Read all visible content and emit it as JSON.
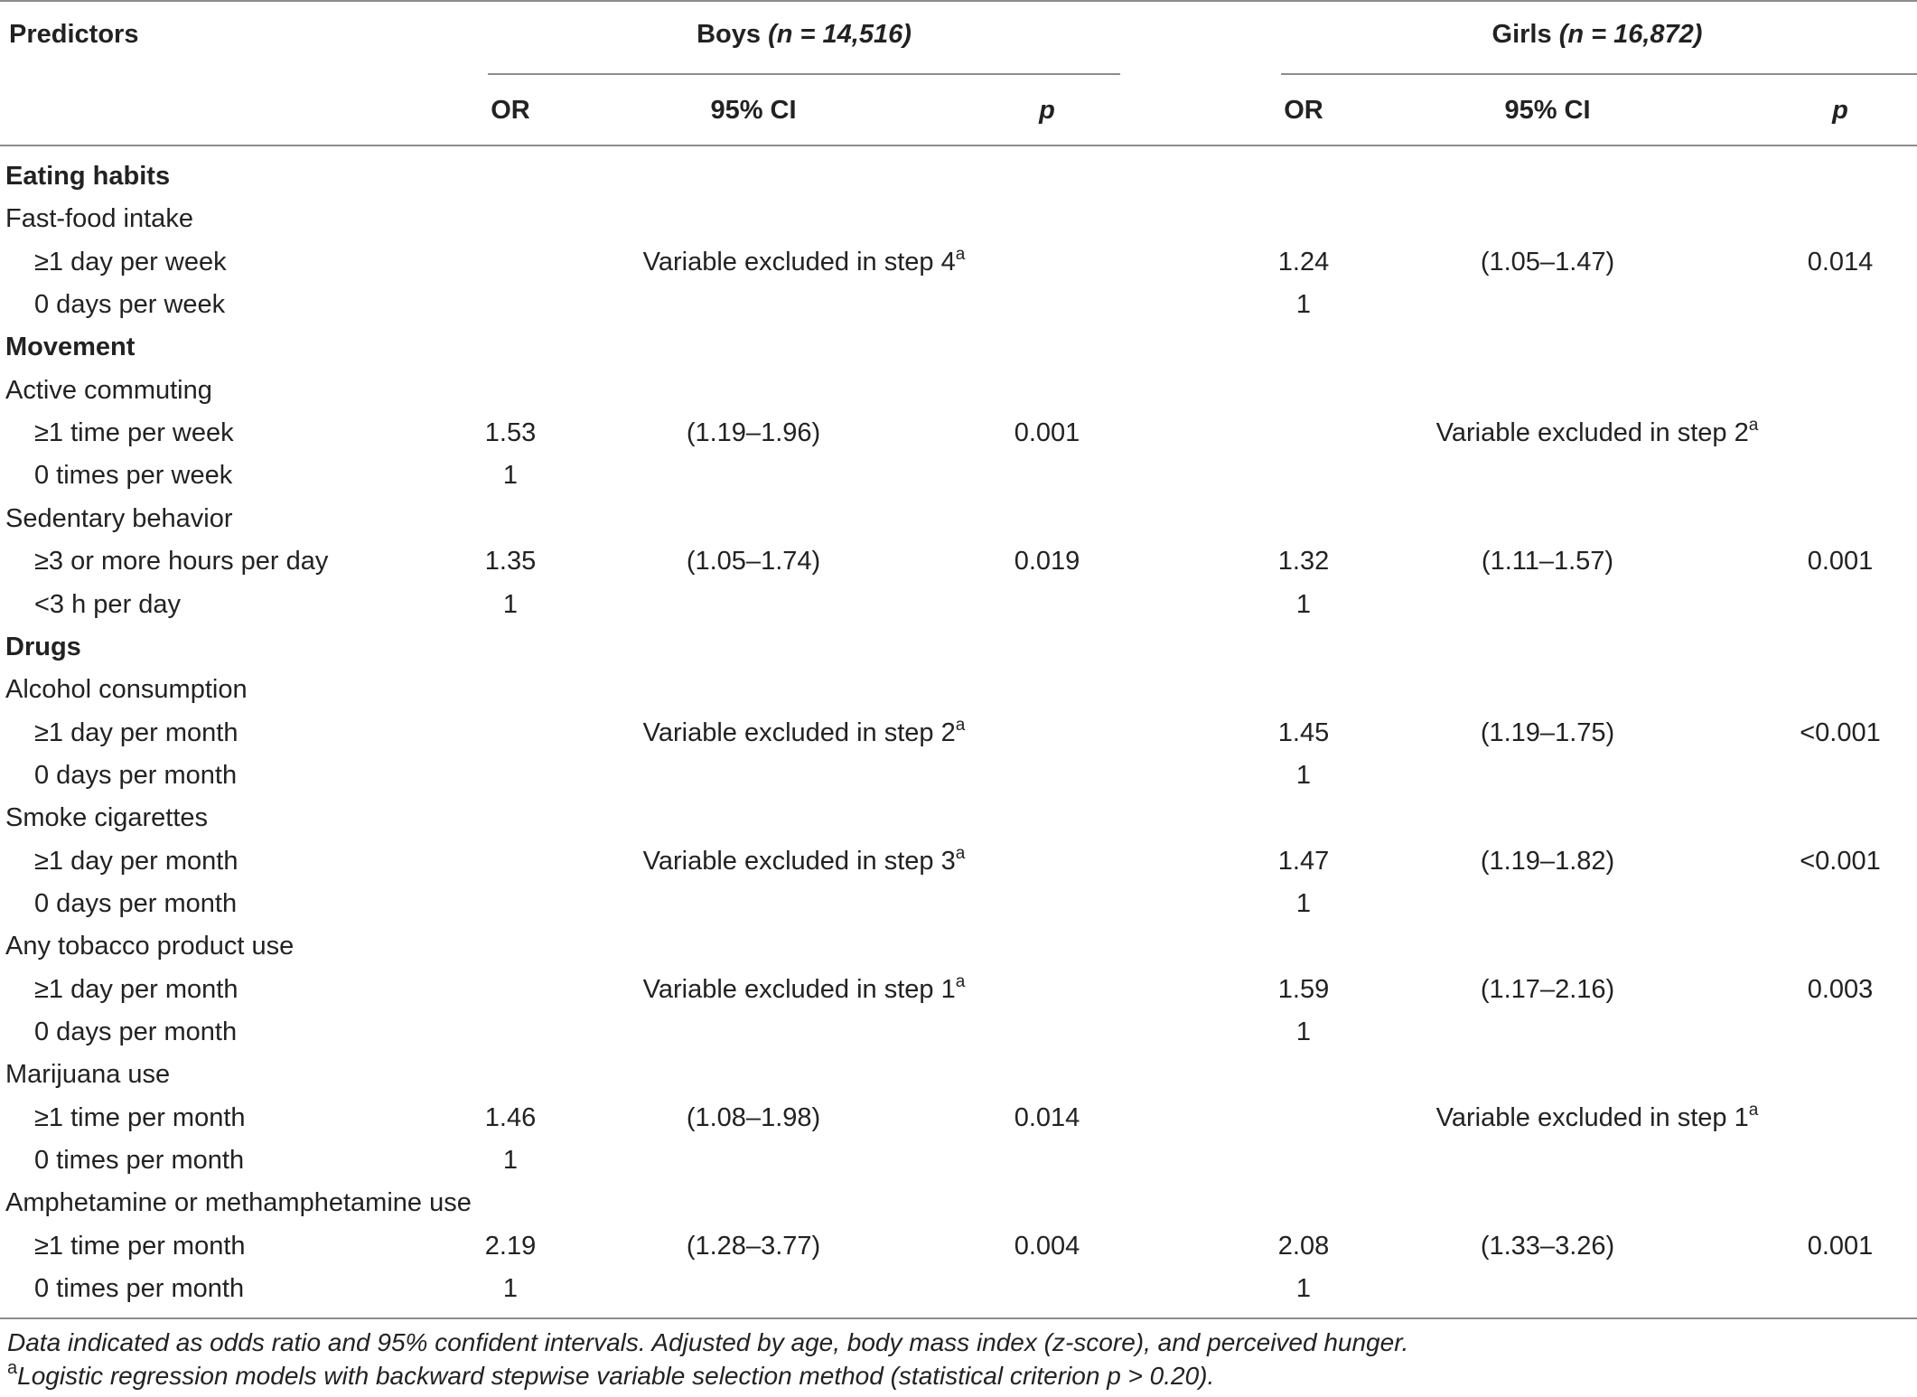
{
  "table": {
    "headers": {
      "predictors": "Predictors",
      "boys_group": "Boys",
      "boys_n": "(n = 14,516)",
      "girls_group": "Girls",
      "girls_n": "(n = 16,872)",
      "or": "OR",
      "ci": "95% CI",
      "p": "p"
    },
    "rows": [
      {
        "label": "Eating habits",
        "kind": "section"
      },
      {
        "label": "Fast-food intake",
        "kind": "variable"
      },
      {
        "label": "≥1 day per week",
        "kind": "level",
        "boys": {
          "note": "Variable excluded in step 4",
          "sup": "a"
        },
        "girls": {
          "or": "1.24",
          "ci": "(1.05–1.47)",
          "p": "0.014"
        }
      },
      {
        "label": "0 days per week",
        "kind": "level",
        "boys": {},
        "girls": {
          "or": "1"
        }
      },
      {
        "label": "Movement",
        "kind": "section"
      },
      {
        "label": "Active commuting",
        "kind": "variable"
      },
      {
        "label": "≥1 time per week",
        "kind": "level",
        "boys": {
          "or": "1.53",
          "ci": "(1.19–1.96)",
          "p": "0.001"
        },
        "girls": {
          "note": "Variable excluded in step 2",
          "sup": "a"
        }
      },
      {
        "label": "0 times per week",
        "kind": "level",
        "boys": {
          "or": "1"
        },
        "girls": {}
      },
      {
        "label": "Sedentary behavior",
        "kind": "variable"
      },
      {
        "label": "≥3 or more hours per day",
        "kind": "level",
        "boys": {
          "or": "1.35",
          "ci": "(1.05–1.74)",
          "p": "0.019"
        },
        "girls": {
          "or": "1.32",
          "ci": "(1.11–1.57)",
          "p": "0.001"
        }
      },
      {
        "label": "<3 h per day",
        "kind": "level",
        "boys": {
          "or": "1"
        },
        "girls": {
          "or": "1"
        }
      },
      {
        "label": "Drugs",
        "kind": "section"
      },
      {
        "label": "Alcohol consumption",
        "kind": "variable"
      },
      {
        "label": "≥1 day per month",
        "kind": "level",
        "boys": {
          "note": "Variable excluded in step 2",
          "sup": "a"
        },
        "girls": {
          "or": "1.45",
          "ci": "(1.19–1.75)",
          "p": "<0.001"
        }
      },
      {
        "label": "0 days per month",
        "kind": "level",
        "boys": {},
        "girls": {
          "or": "1"
        }
      },
      {
        "label": "Smoke cigarettes",
        "kind": "variable"
      },
      {
        "label": "≥1 day per month",
        "kind": "level",
        "boys": {
          "note": "Variable excluded in step 3",
          "sup": "a"
        },
        "girls": {
          "or": "1.47",
          "ci": "(1.19–1.82)",
          "p": "<0.001"
        }
      },
      {
        "label": "0 days per month",
        "kind": "level",
        "boys": {},
        "girls": {
          "or": "1"
        }
      },
      {
        "label": "Any tobacco product use",
        "kind": "variable"
      },
      {
        "label": "≥1 day per month",
        "kind": "level",
        "boys": {
          "note": "Variable excluded in step 1",
          "sup": "a"
        },
        "girls": {
          "or": "1.59",
          "ci": "(1.17–2.16)",
          "p": "0.003"
        }
      },
      {
        "label": "0 days per month",
        "kind": "level",
        "boys": {},
        "girls": {
          "or": "1"
        }
      },
      {
        "label": "Marijuana use",
        "kind": "variable"
      },
      {
        "label": "≥1 time per month",
        "kind": "level",
        "boys": {
          "or": "1.46",
          "ci": "(1.08–1.98)",
          "p": "0.014"
        },
        "girls": {
          "note": "Variable excluded in step 1",
          "sup": "a"
        }
      },
      {
        "label": "0 times per month",
        "kind": "level",
        "boys": {
          "or": "1"
        },
        "girls": {}
      },
      {
        "label": "Amphetamine or methamphetamine use",
        "kind": "variable"
      },
      {
        "label": "≥1 time per month",
        "kind": "level",
        "boys": {
          "or": "2.19",
          "ci": "(1.28–3.77)",
          "p": "0.004"
        },
        "girls": {
          "or": "2.08",
          "ci": "(1.33–3.26)",
          "p": "0.001"
        }
      },
      {
        "label": "0 times per month",
        "kind": "level",
        "boys": {
          "or": "1"
        },
        "girls": {
          "or": "1"
        }
      }
    ]
  },
  "footnotes": {
    "line1": "Data indicated as odds ratio and 95% confident intervals. Adjusted by age, body mass index (z-score), and perceived hunger.",
    "line2_sup": "a",
    "line2": "Logistic regression models with backward stepwise variable selection method (statistical criterion p > 0.20)."
  }
}
